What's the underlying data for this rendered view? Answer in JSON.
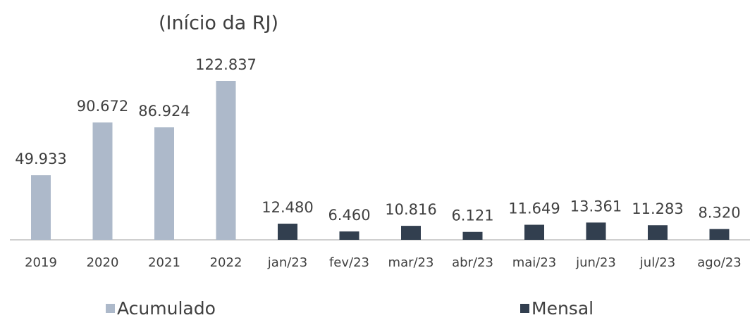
{
  "chart_data": {
    "type": "bar",
    "title": "(Início da RJ)",
    "categories": [
      "2019",
      "2020",
      "2021",
      "2022",
      "jan/23",
      "fev/23",
      "mar/23",
      "abr/23",
      "mai/23",
      "jun/23",
      "jul/23",
      "ago/23"
    ],
    "series": [
      {
        "name": "Acumulado",
        "color": "#adb9ca",
        "values": [
          49933,
          90672,
          86924,
          122837,
          null,
          null,
          null,
          null,
          null,
          null,
          null,
          null
        ],
        "value_labels": [
          "49.933",
          "90.672",
          "86.924",
          "122.837",
          null,
          null,
          null,
          null,
          null,
          null,
          null,
          null
        ]
      },
      {
        "name": "Mensal",
        "color": "#323f4f",
        "values": [
          null,
          null,
          null,
          null,
          12480,
          6460,
          10816,
          6121,
          11649,
          13361,
          11283,
          8320
        ],
        "value_labels": [
          null,
          null,
          null,
          null,
          "12.480",
          "6.460",
          "10.816",
          "6.121",
          "11.649",
          "13.361",
          "11.283",
          "8.320"
        ]
      }
    ]
  }
}
